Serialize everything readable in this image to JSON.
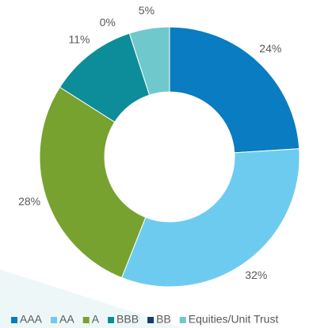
{
  "chart_data": {
    "type": "pie",
    "categories": [
      "AAA",
      "AA",
      "A",
      "BBB",
      "BB",
      "Equities/Unit Trust"
    ],
    "values": [
      24,
      32,
      28,
      11,
      0,
      5
    ],
    "value_labels": [
      "24%",
      "32%",
      "28%",
      "11%",
      "0%",
      "5%"
    ],
    "colors": [
      "#0a7cc1",
      "#6ecbf0",
      "#77a22f",
      "#0d8d99",
      "#153d6b",
      "#6fc8cc"
    ],
    "donut": true,
    "legend": "bottom"
  }
}
